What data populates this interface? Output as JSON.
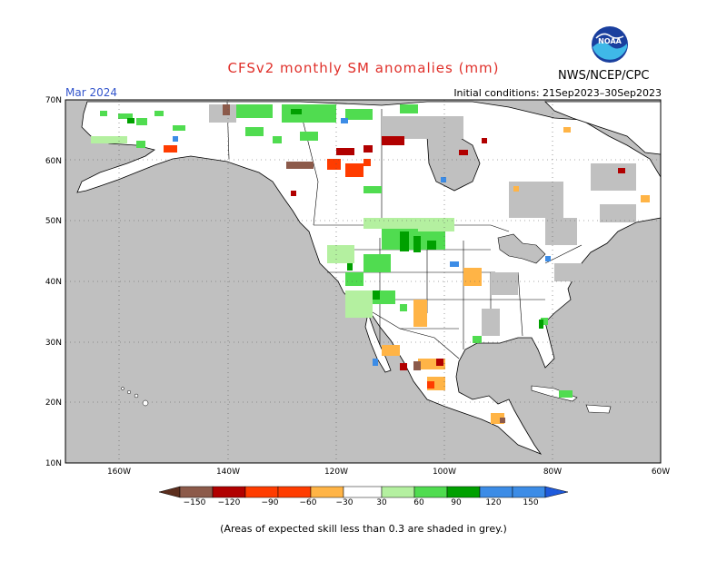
{
  "title": "CFSv2 monthly SM anomalies (mm)",
  "month": "Mar 2024",
  "initial_conditions": "Initial conditions: 21Sep2023–30Sep2023",
  "agency": "NWS/NCEP/CPC",
  "logo_text": "NOAA",
  "footnote": "(Areas of expected skill less than 0.3 are shaded in grey.)",
  "map": {
    "lat_labels": [
      "70N",
      "60N",
      "50N",
      "40N",
      "30N",
      "20N",
      "10N"
    ],
    "lon_labels": [
      "160W",
      "140W",
      "120W",
      "100W",
      "80W",
      "60W"
    ],
    "colors": {
      "grey_low_skill": "#c0c0c0",
      "land_neutral": "#ffffff",
      "ocean": "#c0c0c0"
    }
  },
  "colorbar": {
    "labels": [
      "−150",
      "−120",
      "−90",
      "−60",
      "−30",
      "30",
      "60",
      "90",
      "120",
      "150"
    ],
    "colors": [
      "#5c2e1e",
      "#8c5a4a",
      "#b10000",
      "#ff3c00",
      "#ffb446",
      "#ffffff",
      "#b4f0a0",
      "#50dc50",
      "#00a000",
      "#3c8ce6",
      "#1e5adc"
    ]
  }
}
